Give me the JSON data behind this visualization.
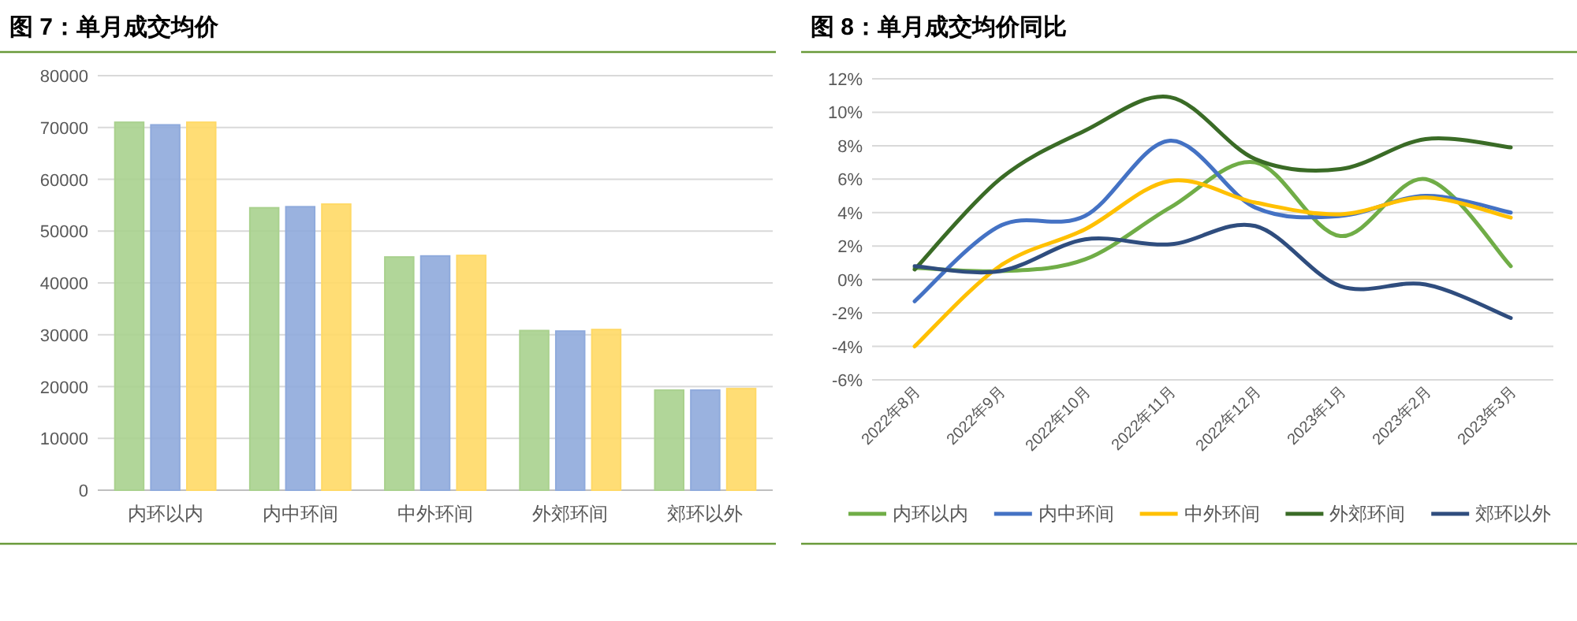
{
  "chart_data": [
    {
      "type": "bar",
      "title": "图 7：单月成交均价",
      "categories": [
        "内环以内",
        "内中环间",
        "中外环间",
        "外郊环间",
        "郊环以外"
      ],
      "series": [
        {
          "color": "#a9d18e",
          "values": [
            71000,
            54500,
            45000,
            30800,
            19300
          ]
        },
        {
          "color": "#8faadc",
          "values": [
            70500,
            54700,
            45200,
            30700,
            19300
          ]
        },
        {
          "color": "#ffd966",
          "values": [
            71000,
            55200,
            45300,
            31000,
            19600
          ]
        }
      ],
      "ylim": [
        0,
        80000
      ],
      "yticks": [
        0,
        10000,
        20000,
        30000,
        40000,
        50000,
        60000,
        70000,
        80000
      ],
      "grid": "y"
    },
    {
      "type": "line",
      "title": "图 8：单月成交均价同比",
      "categories": [
        "2022年8月",
        "2022年9月",
        "2022年10月",
        "2022年11月",
        "2022年12月",
        "2023年1月",
        "2023年2月",
        "2023年3月"
      ],
      "series": [
        {
          "name": "内环以内",
          "color": "#70ad47",
          "values": [
            0.7,
            0.5,
            1.2,
            4.3,
            7.0,
            2.6,
            6.0,
            0.8
          ]
        },
        {
          "name": "内中环间",
          "color": "#4472c4",
          "values": [
            -1.3,
            3.2,
            3.8,
            8.3,
            4.3,
            3.8,
            5.0,
            4.0
          ]
        },
        {
          "name": "中外环间",
          "color": "#ffc000",
          "values": [
            -4.0,
            0.8,
            3.0,
            5.9,
            4.6,
            3.9,
            4.9,
            3.7
          ]
        },
        {
          "name": "外郊环间",
          "color": "#3a6b26",
          "values": [
            0.6,
            6.0,
            8.9,
            10.9,
            7.2,
            6.6,
            8.4,
            7.9
          ]
        },
        {
          "name": "郊环以外",
          "color": "#2f4d7e",
          "values": [
            0.8,
            0.5,
            2.4,
            2.1,
            3.2,
            -0.4,
            -0.3,
            -2.3
          ]
        }
      ],
      "ylim": [
        -6,
        12
      ],
      "yticks": [
        {
          "value": -6,
          "label": "-6%"
        },
        {
          "value": -4,
          "label": "-4%"
        },
        {
          "value": -2,
          "label": "-2%"
        },
        {
          "value": 0,
          "label": "0%"
        },
        {
          "value": 2,
          "label": "2%"
        },
        {
          "value": 4,
          "label": "4%"
        },
        {
          "value": 6,
          "label": "6%"
        },
        {
          "value": 8,
          "label": "8%"
        },
        {
          "value": 10,
          "label": "10%"
        },
        {
          "value": 12,
          "label": "12%"
        }
      ],
      "grid": "y",
      "legend": "bottom"
    }
  ]
}
